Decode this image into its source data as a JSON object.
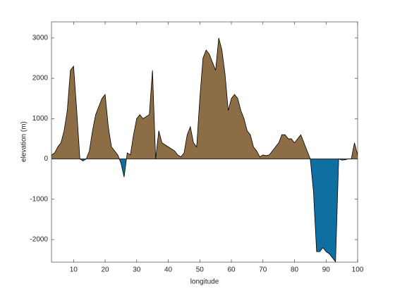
{
  "chart_data": {
    "type": "area",
    "x_label": "longitude",
    "y_label": "elevation (m)",
    "x": [
      3,
      4,
      5,
      6,
      7,
      8,
      9,
      10,
      11,
      12,
      13,
      14,
      15,
      16,
      17,
      18,
      19,
      20,
      21,
      22,
      23,
      24,
      25,
      26,
      27,
      28,
      29,
      30,
      31,
      32,
      33,
      34,
      35,
      36,
      37,
      38,
      39,
      40,
      41,
      42,
      43,
      44,
      45,
      46,
      47,
      48,
      49,
      50,
      51,
      52,
      53,
      54,
      55,
      56,
      57,
      58,
      59,
      60,
      61,
      62,
      63,
      64,
      65,
      66,
      67,
      68,
      69,
      70,
      71,
      72,
      73,
      74,
      75,
      76,
      77,
      78,
      79,
      80,
      81,
      82,
      83,
      84,
      85,
      86,
      87,
      88,
      89,
      90,
      91,
      92,
      93,
      94,
      95,
      96,
      97,
      98,
      99,
      100
    ],
    "values": [
      100,
      150,
      300,
      400,
      700,
      1200,
      2200,
      2300,
      1200,
      0,
      -50,
      0,
      200,
      700,
      1100,
      1300,
      1500,
      1600,
      800,
      300,
      200,
      100,
      -100,
      -450,
      150,
      100,
      600,
      1000,
      1100,
      1000,
      1050,
      1100,
      2200,
      0,
      700,
      400,
      350,
      300,
      250,
      200,
      100,
      50,
      150,
      600,
      800,
      400,
      300,
      1500,
      2500,
      2700,
      2600,
      2400,
      2200,
      3000,
      2700,
      2100,
      1200,
      1500,
      1600,
      1500,
      1200,
      1000,
      700,
      600,
      300,
      200,
      50,
      100,
      80,
      100,
      200,
      300,
      400,
      600,
      600,
      500,
      500,
      400,
      500,
      600,
      400,
      200,
      0,
      -800,
      -2300,
      -2300,
      -2200,
      -2300,
      -2350,
      -2450,
      -2550,
      0,
      -30,
      -20,
      0,
      0,
      400,
      100
    ],
    "land_color": "#8c6d46",
    "sea_color": "#0f6fa0",
    "line_color": "#000000",
    "xlim": [
      3,
      100
    ],
    "xticks": [
      10,
      20,
      30,
      40,
      50,
      60,
      70,
      80,
      90,
      100
    ],
    "ylim": [
      -2560,
      3400
    ],
    "yticks": [
      -2000,
      -1000,
      0,
      1000,
      2000,
      3000
    ]
  }
}
